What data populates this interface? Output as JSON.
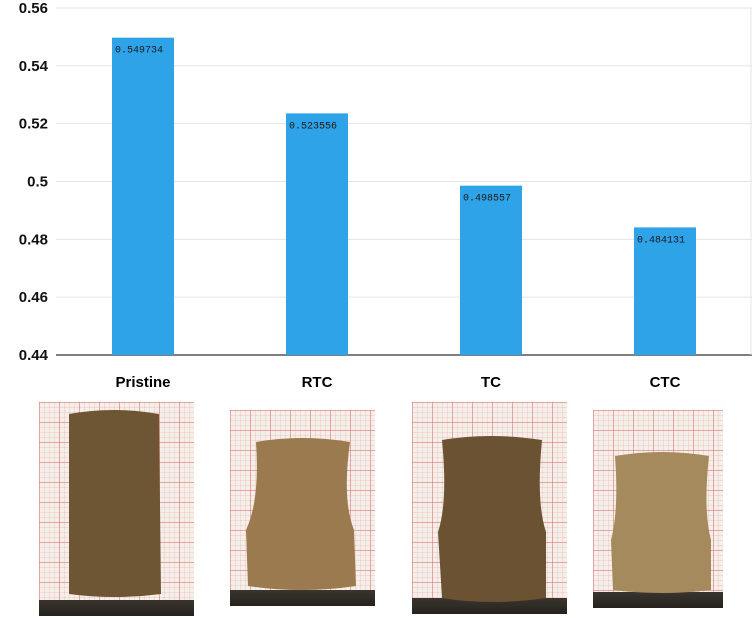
{
  "chart_data": {
    "type": "bar",
    "categories": [
      "Pristine",
      "RTC",
      "TC",
      "CTC"
    ],
    "values": [
      0.549734,
      0.523556,
      0.498557,
      0.484131
    ],
    "value_labels": [
      "0.549734",
      "0.523556",
      "0.498557",
      "0.484131"
    ],
    "ylim": [
      0.44,
      0.56
    ],
    "yticks": [
      0.44,
      0.46,
      0.48,
      0.5,
      0.52,
      0.54,
      0.56
    ],
    "ytick_labels": [
      "0.44",
      "0.46",
      "0.48",
      "0.5",
      "0.52",
      "0.54",
      "0.56"
    ],
    "bar_color": "#2ea3e8",
    "grid": true
  },
  "photos": [
    {
      "name": "Pristine",
      "color": "#6e5533"
    },
    {
      "name": "RTC",
      "color": "#9a7a4e"
    },
    {
      "name": "TC",
      "color": "#6a5233"
    },
    {
      "name": "CTC",
      "color": "#a58a5e"
    }
  ]
}
